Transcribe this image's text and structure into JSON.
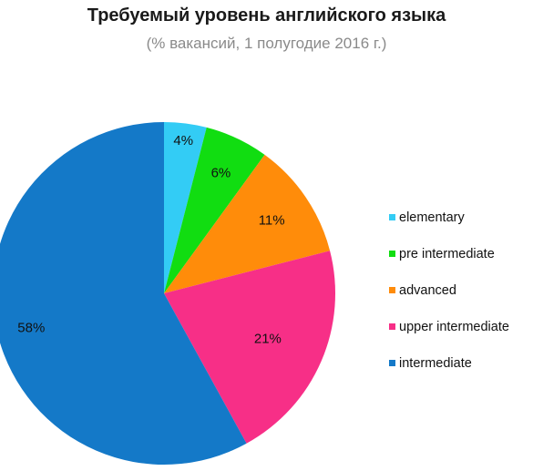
{
  "chart_data": {
    "type": "pie",
    "title": "Требуемый уровень английского языка",
    "subtitle": "(% вакансий, 1 полугодие 2016 г.)",
    "slices": [
      {
        "label": "elementary",
        "value": 4,
        "display": "4%",
        "color": "#33ccf5"
      },
      {
        "label": "pre intermediate",
        "value": 6,
        "display": "6%",
        "color": "#11dd11"
      },
      {
        "label": "advanced",
        "value": 11,
        "display": "11%",
        "color": "#ff8c0a"
      },
      {
        "label": "upper intermediate",
        "value": 21,
        "display": "21%",
        "color": "#f72f87"
      },
      {
        "label": "intermediate",
        "value": 58,
        "display": "58%",
        "color": "#1479c8"
      }
    ],
    "start_angle_deg": 0,
    "direction": "clockwise",
    "legend_position": "right"
  }
}
